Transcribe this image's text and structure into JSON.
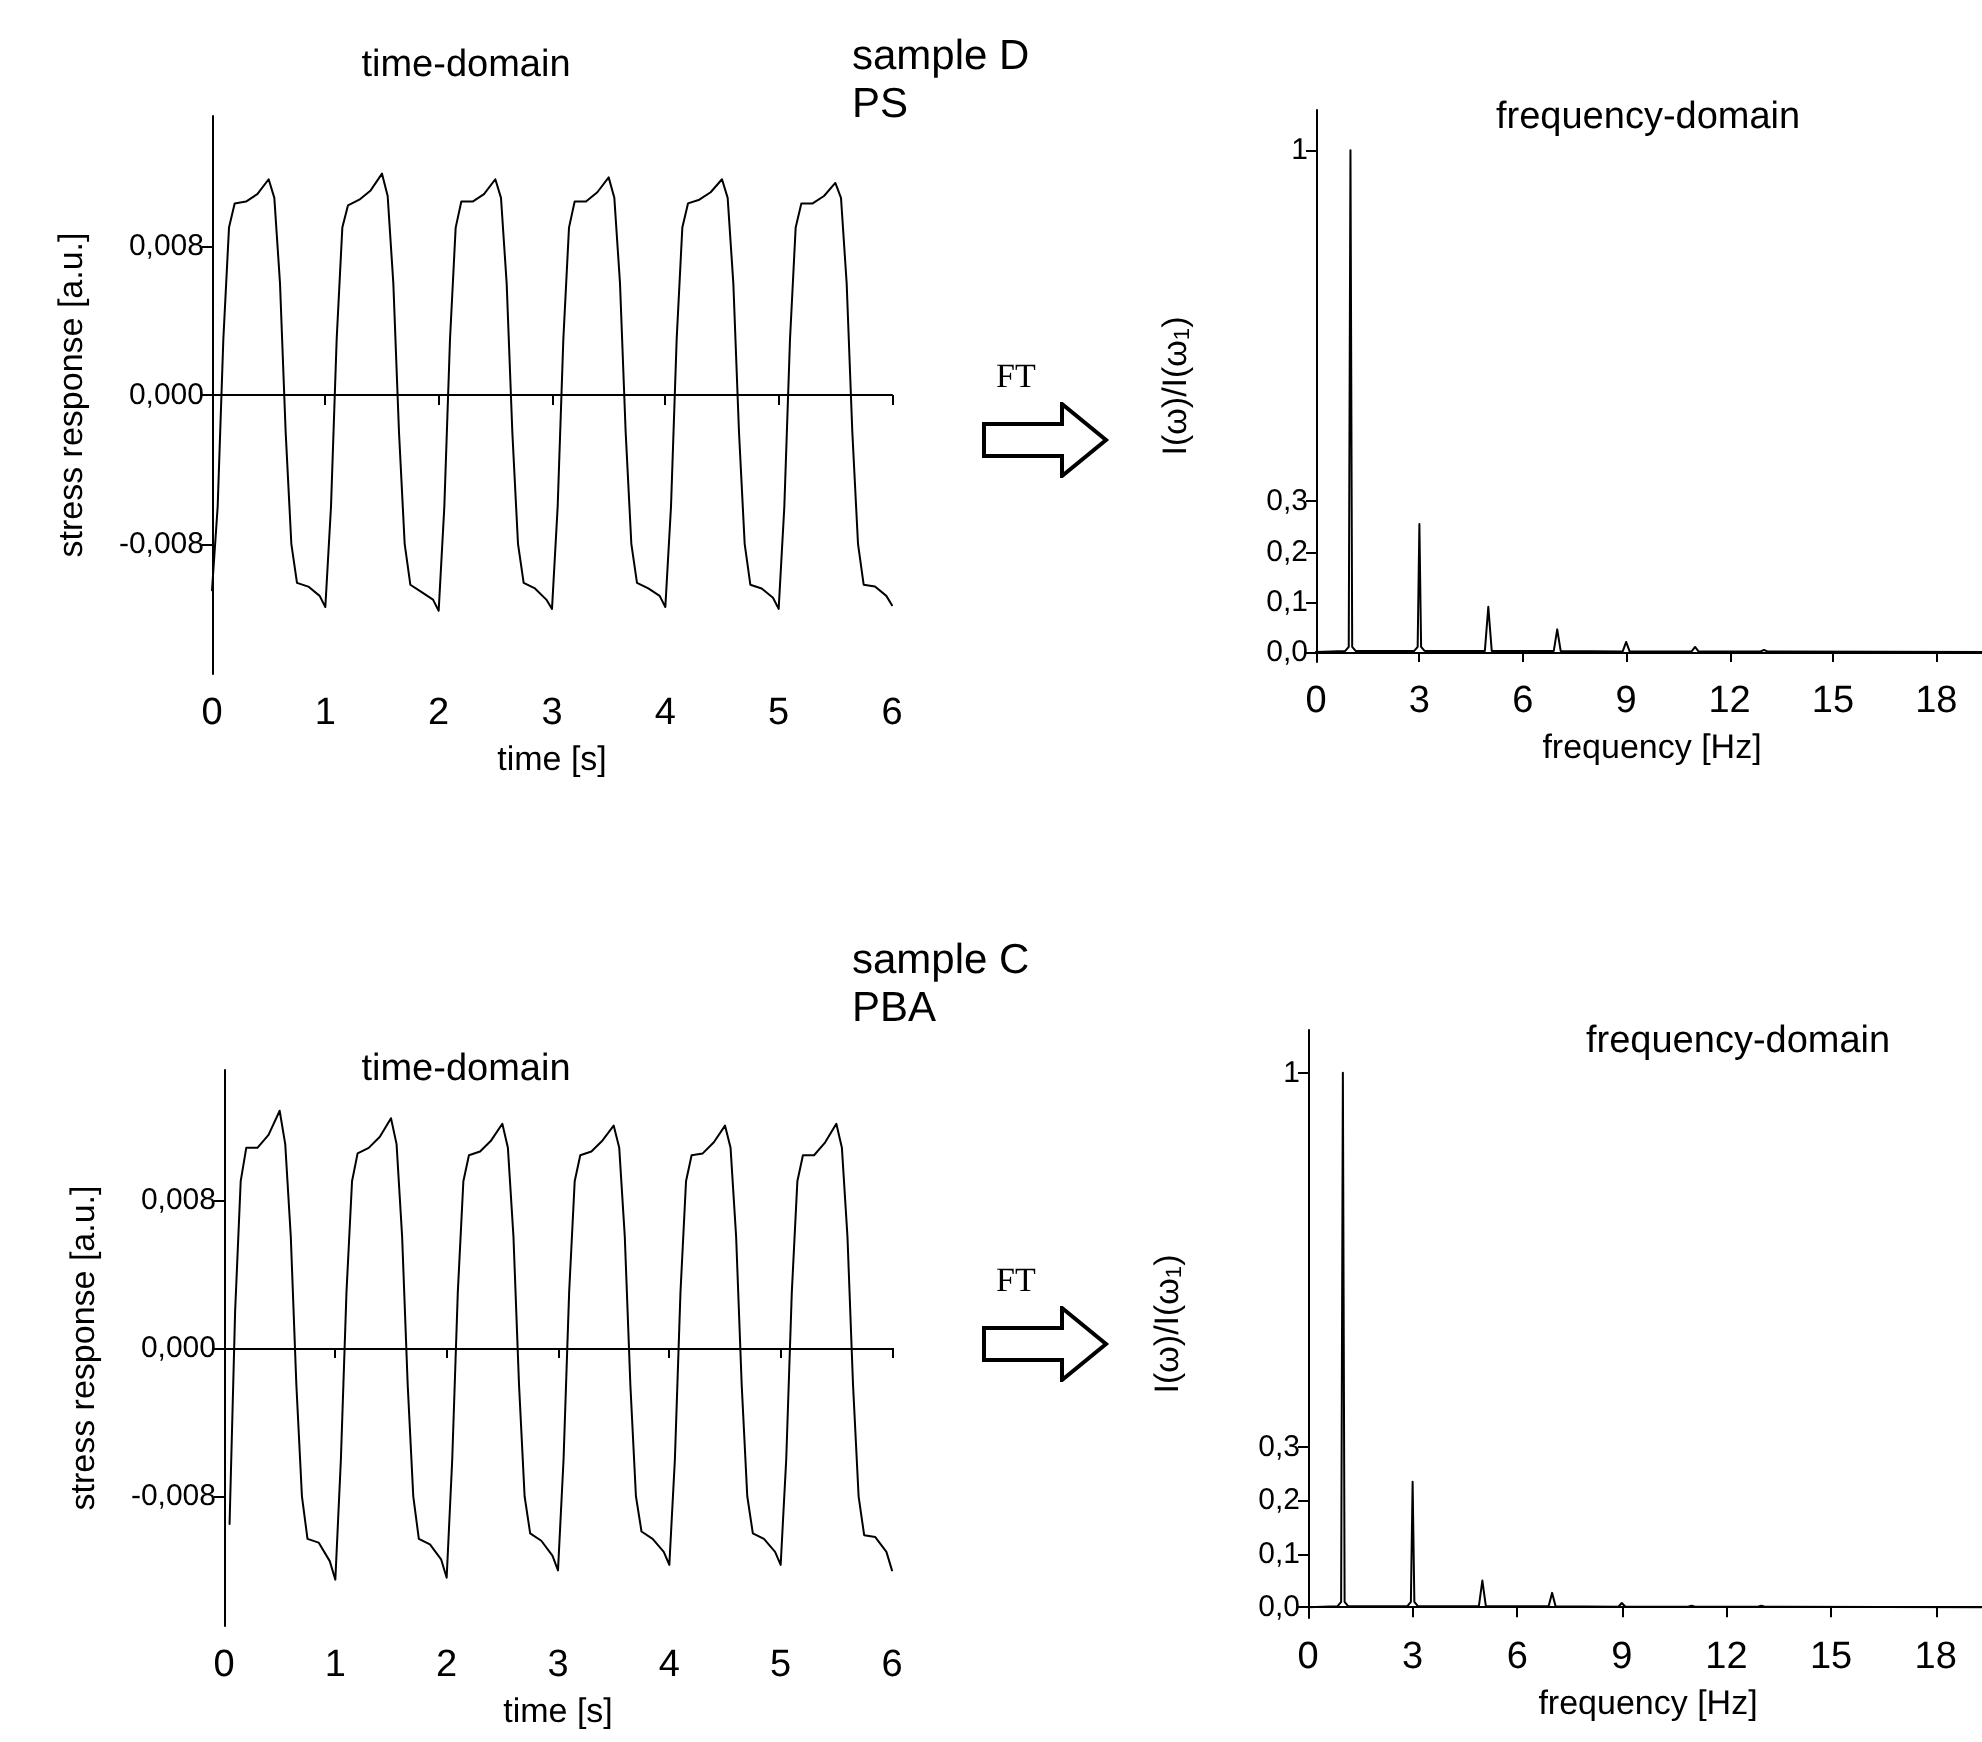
{
  "chart_data": [
    {
      "type": "line",
      "title": "time-domain",
      "xlabel": "time [s]",
      "ylabel": "stress response [a.u.]",
      "xlim": [
        0,
        6
      ],
      "xticks": [
        0,
        1,
        2,
        3,
        4,
        5,
        6
      ],
      "ylim": [
        -0.015,
        0.015
      ],
      "yticks": [
        {
          "value": -0.008,
          "label": "-0,008"
        },
        {
          "value": 0,
          "label": "0,000"
        },
        {
          "value": 0.008,
          "label": "0,008"
        }
      ],
      "color": "#000000",
      "x": [
        0,
        0.05,
        0.1,
        0.15,
        0.2,
        0.3,
        0.4,
        0.5,
        0.55,
        0.6,
        0.65,
        0.7,
        0.75,
        0.85,
        0.95,
        1,
        1.05,
        1.1,
        1.15,
        1.2,
        1.3,
        1.4,
        1.5,
        1.55,
        1.6,
        1.65,
        1.7,
        1.75,
        1.85,
        1.95,
        2,
        2.05,
        2.1,
        2.15,
        2.2,
        2.3,
        2.4,
        2.5,
        2.55,
        2.6,
        2.65,
        2.7,
        2.75,
        2.85,
        2.95,
        3,
        3.05,
        3.1,
        3.15,
        3.2,
        3.3,
        3.4,
        3.5,
        3.55,
        3.6,
        3.65,
        3.7,
        3.75,
        3.85,
        3.95,
        4,
        4.05,
        4.1,
        4.15,
        4.2,
        4.3,
        4.4,
        4.5,
        4.55,
        4.6,
        4.65,
        4.7,
        4.75,
        4.85,
        4.95,
        5,
        5.05,
        5.1,
        5.15,
        5.2,
        5.3,
        5.4,
        5.5,
        5.55,
        5.6,
        5.65,
        5.7,
        5.75,
        5.85,
        5.95,
        6
      ],
      "values": [
        -0.0105,
        -0.006,
        0.003,
        0.009,
        0.0103,
        0.0104,
        0.0108,
        0.0116,
        0.0106,
        0.006,
        -0.002,
        -0.008,
        -0.0101,
        -0.0103,
        -0.0108,
        -0.0114,
        -0.006,
        0.003,
        0.009,
        0.0102,
        0.0105,
        0.011,
        0.0119,
        0.0107,
        0.006,
        -0.002,
        -0.008,
        -0.0102,
        -0.0106,
        -0.011,
        -0.0116,
        -0.006,
        0.003,
        0.009,
        0.0104,
        0.0104,
        0.0108,
        0.0116,
        0.0106,
        0.006,
        -0.002,
        -0.008,
        -0.0101,
        -0.0104,
        -0.011,
        -0.0115,
        -0.006,
        0.003,
        0.009,
        0.0104,
        0.0104,
        0.0109,
        0.0117,
        0.0106,
        0.006,
        -0.002,
        -0.008,
        -0.0101,
        -0.0104,
        -0.0108,
        -0.0114,
        -0.006,
        0.003,
        0.009,
        0.0103,
        0.0105,
        0.0109,
        0.0116,
        0.0106,
        0.006,
        -0.002,
        -0.008,
        -0.0102,
        -0.0104,
        -0.0109,
        -0.0115,
        -0.006,
        0.003,
        0.009,
        0.0103,
        0.0103,
        0.0107,
        0.0114,
        0.0106,
        0.006,
        -0.002,
        -0.008,
        -0.0102,
        -0.0103,
        -0.0108,
        -0.0113
      ]
    },
    {
      "type": "line",
      "title": "frequency-domain",
      "xlabel": "frequency [Hz]",
      "ylabel": "I(ω)/I(ω$_{1}$)",
      "annotations": [
        "sample D\nPS",
        "FT"
      ],
      "xlim": [
        0,
        19.5
      ],
      "xticks": [
        0,
        3,
        6,
        9,
        12,
        15,
        18
      ],
      "ylim": [
        -0.02,
        1.08
      ],
      "yticks": [
        {
          "value": 0,
          "label": "0,0"
        },
        {
          "value": 0.1,
          "label": "0,1"
        },
        {
          "value": 0.2,
          "label": "0,2"
        },
        {
          "value": 0.3,
          "label": "0,3"
        },
        1
      ],
      "color": "#000000",
      "x": [
        0,
        0.85,
        0.95,
        1,
        1.05,
        1.15,
        2.85,
        2.95,
        3,
        3.05,
        3.15,
        4.9,
        5,
        5.1,
        6.9,
        7,
        7.1,
        8.9,
        9,
        9.1,
        10.9,
        11,
        11.1,
        12.9,
        13,
        13.1,
        19.5
      ],
      "values": [
        0,
        0.002,
        0.01,
        1,
        0.01,
        0.002,
        0.002,
        0.01,
        0.255,
        0.01,
        0.002,
        0.002,
        0.09,
        0.002,
        0.002,
        0.045,
        0.002,
        0.001,
        0.02,
        0.001,
        0.001,
        0.01,
        0.001,
        0.001,
        0.004,
        0.001,
        0
      ]
    },
    {
      "type": "line",
      "title": "time-domain",
      "xlabel": "time [s]",
      "ylabel": "stress response [a.u.]",
      "xlim": [
        0,
        6
      ],
      "xticks": [
        0,
        1,
        2,
        3,
        4,
        5,
        6
      ],
      "ylim": [
        -0.015,
        0.015
      ],
      "yticks": [
        {
          "value": -0.008,
          "label": "-0,008"
        },
        {
          "value": 0,
          "label": "0,000"
        },
        {
          "value": 0.008,
          "label": "0,008"
        }
      ],
      "color": "#000000",
      "x": [
        0.05,
        0.1,
        0.15,
        0.2,
        0.3,
        0.4,
        0.5,
        0.55,
        0.6,
        0.65,
        0.7,
        0.75,
        0.85,
        0.95,
        1,
        1.05,
        1.1,
        1.15,
        1.2,
        1.3,
        1.4,
        1.5,
        1.55,
        1.6,
        1.65,
        1.7,
        1.75,
        1.85,
        1.95,
        2,
        2.05,
        2.1,
        2.15,
        2.2,
        2.3,
        2.4,
        2.5,
        2.55,
        2.6,
        2.65,
        2.7,
        2.75,
        2.85,
        2.95,
        3,
        3.05,
        3.1,
        3.15,
        3.2,
        3.3,
        3.4,
        3.5,
        3.55,
        3.6,
        3.65,
        3.7,
        3.75,
        3.85,
        3.95,
        4,
        4.05,
        4.1,
        4.15,
        4.2,
        4.3,
        4.4,
        4.5,
        4.55,
        4.6,
        4.65,
        4.7,
        4.75,
        4.85,
        4.95,
        5,
        5.05,
        5.1,
        5.15,
        5.2,
        5.3,
        5.4,
        5.5,
        5.55,
        5.6,
        5.65,
        5.7,
        5.75,
        5.85,
        5.95,
        6
      ],
      "values": [
        -0.0095,
        0.002,
        0.009,
        0.0108,
        0.0108,
        0.0115,
        0.0128,
        0.011,
        0.006,
        -0.002,
        -0.008,
        -0.0103,
        -0.0105,
        -0.0115,
        -0.0125,
        -0.006,
        0.003,
        0.009,
        0.0105,
        0.0108,
        0.0114,
        0.0124,
        0.011,
        0.006,
        -0.002,
        -0.008,
        -0.0103,
        -0.0106,
        -0.0114,
        -0.0124,
        -0.006,
        0.003,
        0.009,
        0.0104,
        0.0106,
        0.0112,
        0.0121,
        0.0108,
        0.006,
        -0.002,
        -0.008,
        -0.01,
        -0.0104,
        -0.0112,
        -0.012,
        -0.006,
        0.003,
        0.009,
        0.0104,
        0.0106,
        0.0112,
        0.012,
        0.0108,
        0.006,
        -0.002,
        -0.008,
        -0.0099,
        -0.0103,
        -0.011,
        -0.0117,
        -0.006,
        0.003,
        0.009,
        0.0104,
        0.0105,
        0.0111,
        0.012,
        0.0108,
        0.006,
        -0.002,
        -0.008,
        -0.01,
        -0.0103,
        -0.011,
        -0.0117,
        -0.006,
        0.003,
        0.009,
        0.0104,
        0.0104,
        0.0111,
        0.0121,
        0.0108,
        0.006,
        -0.002,
        -0.008,
        -0.0101,
        -0.0102,
        -0.011,
        -0.012
      ]
    },
    {
      "type": "line",
      "title": "frequency-domain",
      "xlabel": "frequency [Hz]",
      "ylabel": "I(ω)/I(ω$_{1}$)",
      "annotations": [
        "sample C\nPBA",
        "FT"
      ],
      "xlim": [
        0,
        19.5
      ],
      "xticks": [
        0,
        3,
        6,
        9,
        12,
        15,
        18
      ],
      "ylim": [
        -0.02,
        1.08
      ],
      "yticks": [
        {
          "value": 0,
          "label": "0,0"
        },
        {
          "value": 0.1,
          "label": "0,1"
        },
        {
          "value": 0.2,
          "label": "0,2"
        },
        {
          "value": 0.3,
          "label": "0,3"
        },
        1
      ],
      "color": "#000000",
      "x": [
        0,
        0.85,
        0.95,
        1,
        1.05,
        1.15,
        2.85,
        2.95,
        3,
        3.05,
        3.15,
        4.9,
        5,
        5.1,
        6.9,
        7,
        7.1,
        8.9,
        9,
        9.1,
        10.9,
        11,
        11.1,
        12.9,
        13,
        13.1,
        19.5
      ],
      "values": [
        0,
        0.002,
        0.01,
        1,
        0.01,
        0.002,
        0.002,
        0.01,
        0.235,
        0.01,
        0.002,
        0.002,
        0.05,
        0.002,
        0.002,
        0.027,
        0.002,
        0.001,
        0.008,
        0.001,
        0.001,
        0.003,
        0.001,
        0.001,
        0.003,
        0.001,
        0
      ]
    }
  ]
}
